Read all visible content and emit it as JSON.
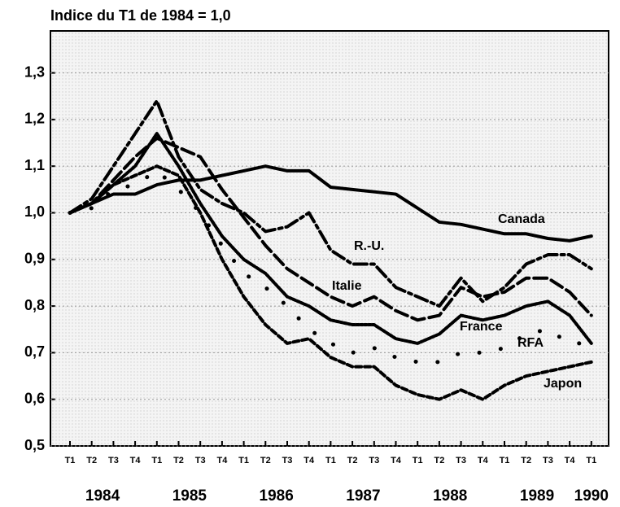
{
  "chart_data": {
    "type": "line",
    "title": "Indice du T1 de 1984 = 1,0",
    "categories": [
      "T1",
      "T2",
      "T3",
      "T4",
      "T1",
      "T2",
      "T3",
      "T4",
      "T1",
      "T2",
      "T3",
      "T4",
      "T1",
      "T2",
      "T3",
      "T4",
      "T1",
      "T2",
      "T3",
      "T4",
      "T1",
      "T2",
      "T3",
      "T4",
      "T1"
    ],
    "years": [
      "1984",
      "1985",
      "1986",
      "1987",
      "1988",
      "1989",
      "1990"
    ],
    "series": [
      {
        "name": "Canada",
        "color": "#000000",
        "values": [
          1.0,
          1.02,
          1.04,
          1.04,
          1.06,
          1.07,
          1.07,
          1.08,
          1.09,
          1.1,
          1.09,
          1.09,
          1.055,
          1.05,
          1.045,
          1.04,
          1.01,
          0.98,
          0.975,
          0.965,
          0.955,
          0.955,
          0.945,
          0.94,
          0.95
        ]
      },
      {
        "name": "R.-U.",
        "color": "#000000",
        "values": [
          1.0,
          1.03,
          1.1,
          1.17,
          1.24,
          1.12,
          1.05,
          1.02,
          1.0,
          0.96,
          0.97,
          1.0,
          0.92,
          0.89,
          0.89,
          0.84,
          0.82,
          0.8,
          0.86,
          0.81,
          0.84,
          0.89,
          0.91,
          0.91,
          0.88
        ]
      },
      {
        "name": "Italie",
        "color": "#000000",
        "values": [
          1.0,
          1.02,
          1.07,
          1.12,
          1.16,
          1.14,
          1.12,
          1.05,
          0.99,
          0.93,
          0.88,
          0.85,
          0.82,
          0.8,
          0.82,
          0.79,
          0.77,
          0.78,
          0.84,
          0.82,
          0.83,
          0.86,
          0.86,
          0.83,
          0.78
        ]
      },
      {
        "name": "France",
        "color": "#000000",
        "values": [
          1.0,
          1.02,
          1.06,
          1.1,
          1.17,
          1.1,
          1.02,
          0.95,
          0.9,
          0.87,
          0.82,
          0.8,
          0.77,
          0.76,
          0.76,
          0.73,
          0.72,
          0.74,
          0.78,
          0.77,
          0.78,
          0.8,
          0.81,
          0.78,
          0.72
        ]
      },
      {
        "name": "RFA",
        "color": "#000000",
        "values": [
          1.0,
          1.01,
          1.05,
          1.06,
          1.09,
          1.05,
          1.0,
          0.93,
          0.87,
          0.84,
          0.8,
          0.75,
          0.72,
          0.7,
          0.71,
          0.69,
          0.68,
          0.68,
          0.7,
          0.7,
          0.71,
          0.74,
          0.75,
          0.72,
          0.72
        ]
      },
      {
        "name": "Japon",
        "color": "#000000",
        "values": [
          1.0,
          1.02,
          1.06,
          1.08,
          1.1,
          1.08,
          1.0,
          0.9,
          0.82,
          0.76,
          0.72,
          0.73,
          0.69,
          0.67,
          0.67,
          0.63,
          0.61,
          0.6,
          0.62,
          0.6,
          0.63,
          0.65,
          0.66,
          0.67,
          0.68
        ]
      }
    ],
    "ylim": [
      0.5,
      1.39
    ],
    "yticks": [
      {
        "value": 0.5,
        "label": "0,5"
      },
      {
        "value": 0.6,
        "label": "0,6"
      },
      {
        "value": 0.7,
        "label": "0,7"
      },
      {
        "value": 0.8,
        "label": "0,8"
      },
      {
        "value": 0.9,
        "label": "0,9"
      },
      {
        "value": 1.0,
        "label": "1,0"
      },
      {
        "value": 1.1,
        "label": "1,1"
      },
      {
        "value": 1.2,
        "label": "1,2"
      },
      {
        "value": 1.3,
        "label": "1,3"
      }
    ],
    "grid": true
  }
}
